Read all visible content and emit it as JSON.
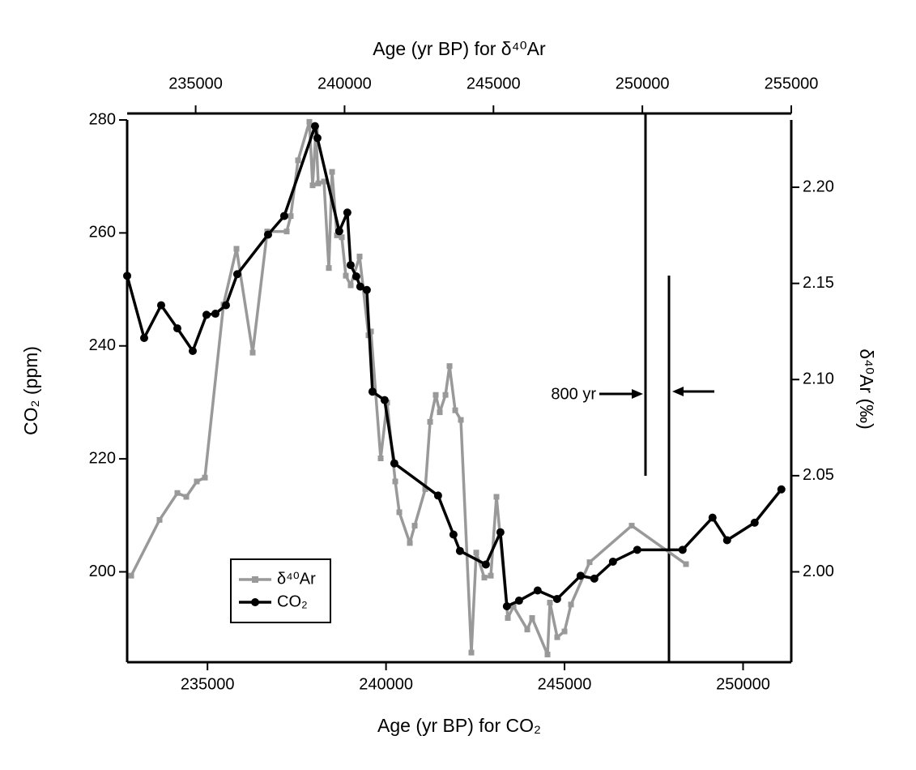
{
  "chart_data": {
    "type": "line",
    "x_label": "Age (yr BP) for CO₂",
    "x2_label": "Age (yr BP) for δ⁴⁰Ar",
    "y_label": "CO₂ (ppm)",
    "y2_label": "δ⁴⁰Ar (‰)",
    "annotation": "800 yr",
    "xlim": [
      232750,
      251350
    ],
    "xticks": [
      235000,
      240000,
      245000,
      250000
    ],
    "x2lim": [
      232700,
      255000
    ],
    "x2ticks": [
      235000,
      240000,
      245000,
      250000,
      255000
    ],
    "ylim": [
      184,
      280
    ],
    "yticks": [
      200,
      220,
      240,
      260,
      280
    ],
    "y2lim": [
      1.953,
      2.235
    ],
    "y2ticks": [
      {
        "value": 2.0,
        "label": "2.00"
      },
      2.05,
      {
        "value": 2.1,
        "label": "2.10"
      },
      2.15,
      {
        "value": 2.2,
        "label": "2.20"
      }
    ],
    "legend": "lower-left",
    "series": [
      {
        "name": "δ⁴⁰Ar",
        "color": "#999999",
        "marker": "square",
        "axis": "y2",
        "x_axis": "x2",
        "x": [
          232836,
          233788,
          234386,
          234685,
          235039,
          235311,
          235936,
          236371,
          236915,
          237405,
          238058,
          238193,
          238438,
          238819,
          238928,
          239036,
          239118,
          239309,
          239472,
          239581,
          239744,
          239907,
          240043,
          240206,
          240505,
          240805,
          240886,
          241213,
          241430,
          241702,
          241838,
          242192,
          242355,
          242709,
          242872,
          243062,
          243198,
          243389,
          243525,
          243715,
          243905,
          244258,
          244422,
          244694,
          244911,
          245101,
          245482,
          245673,
          246135,
          246298,
          246815,
          246896,
          247141,
          247386,
          247604,
          248229,
          249643,
          251465
        ],
        "values": [
          1.998,
          2.027,
          2.041,
          2.039,
          2.047,
          2.049,
          2.139,
          2.168,
          2.114,
          2.177,
          2.177,
          2.185,
          2.214,
          2.234,
          2.201,
          2.229,
          2.202,
          2.203,
          2.158,
          2.208,
          2.175,
          2.174,
          2.154,
          2.149,
          2.164,
          2.123,
          2.125,
          2.059,
          2.088,
          2.047,
          2.031,
          2.015,
          2.024,
          2.043,
          2.078,
          2.092,
          2.083,
          2.092,
          2.107,
          2.084,
          2.079,
          1.958,
          2.01,
          1.997,
          1.998,
          2.039,
          1.976,
          1.982,
          1.97,
          1.976,
          1.957,
          1.984,
          1.966,
          1.969,
          1.983,
          2.005,
          2.024,
          2.004
        ]
      },
      {
        "name": "CO₂",
        "color": "#000000",
        "marker": "circle",
        "axis": "y",
        "x_axis": "x",
        "x": [
          232750,
          233226,
          233702,
          234156,
          234587,
          234972,
          235222,
          235517,
          235834,
          236696,
          237149,
          238011,
          238079,
          238690,
          238917,
          239009,
          239167,
          239280,
          239462,
          239621,
          239961,
          240233,
          241458,
          241889,
          242070,
          242796,
          243204,
          243385,
          243726,
          244247,
          244791,
          245449,
          245834,
          246356,
          247036,
          248306,
          249145,
          249553,
          250324,
          251073
        ],
        "values": [
          252.4,
          241.4,
          247.2,
          243.1,
          239.1,
          245.5,
          245.7,
          247.2,
          252.7,
          259.7,
          263.0,
          278.9,
          276.8,
          260.3,
          263.6,
          254.3,
          252.3,
          250.5,
          249.9,
          231.9,
          230.4,
          219.2,
          213.5,
          206.6,
          203.7,
          201.3,
          207.0,
          193.9,
          194.9,
          196.7,
          195.2,
          199.3,
          198.8,
          201.8,
          203.9,
          203.9,
          209.6,
          205.6,
          208.7,
          214.6
        ]
      }
    ]
  }
}
